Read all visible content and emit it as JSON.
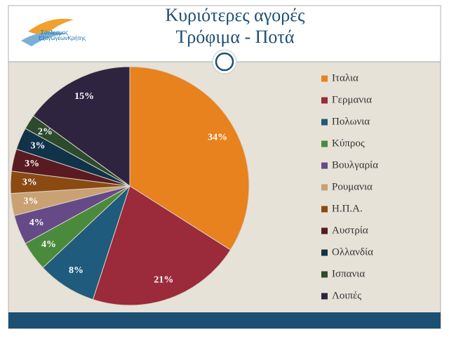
{
  "logo": [
    "Σύνδεσμος",
    "ΕξαγωγέωνΚρήτης"
  ],
  "chart_data": {
    "type": "pie",
    "title": "Κυριότερες αγορές",
    "subtitle": "Τρόφιμα - Ποτά",
    "categories": [
      "Ιταλια",
      "Γερμανια",
      "Πολωνια",
      "Κύπρος",
      "Βουλγαρία",
      "Ρουμανια",
      "Η.Π.Α.",
      "Αυστρία",
      "Ολλανδία",
      "Ισπανια",
      "Λοιπές"
    ],
    "values": [
      34,
      21,
      8,
      4,
      4,
      3,
      3,
      3,
      3,
      2,
      15
    ],
    "value_labels": [
      "34%",
      "21%",
      "8%",
      "4%",
      "4%",
      "3%",
      "3%",
      "3%",
      "3%",
      "2%",
      "15%"
    ],
    "colors": [
      "#e8821e",
      "#9b2a3a",
      "#1f5b7c",
      "#4a8a3c",
      "#664a88",
      "#c9a173",
      "#8a4a12",
      "#5a1a22",
      "#11334a",
      "#2c4a2c",
      "#2e2440"
    ],
    "legend": "right"
  }
}
